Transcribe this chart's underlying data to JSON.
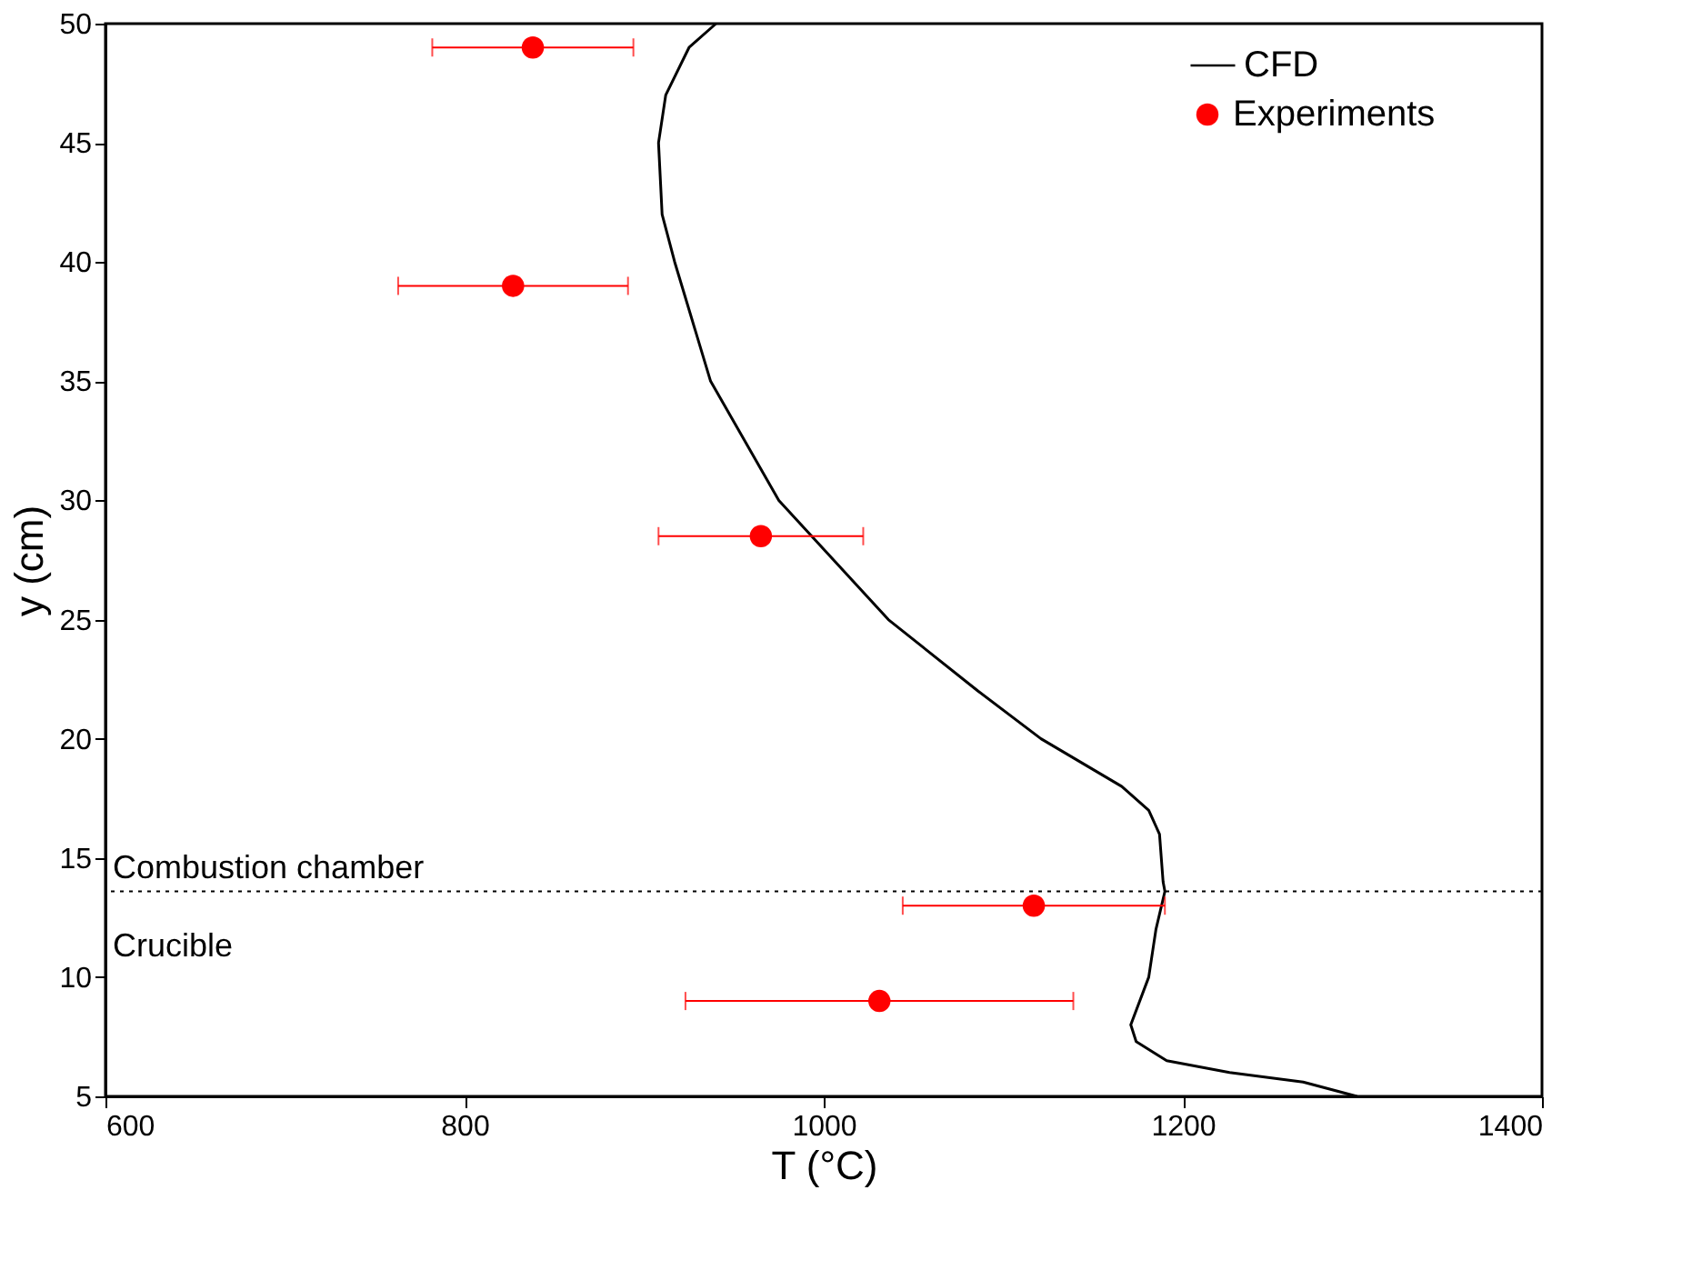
{
  "chart_data": {
    "type": "line",
    "xlabel": "T (°C)",
    "ylabel": "y (cm)",
    "xlim": [
      600,
      1400
    ],
    "xticks": [
      600,
      800,
      1000,
      1200,
      1400
    ],
    "ylim": [
      5,
      50
    ],
    "yticks": [
      5,
      10,
      15,
      20,
      25,
      30,
      35,
      40,
      45,
      50
    ],
    "grid": false,
    "legend": "top right",
    "series": [
      {
        "name": "CFD",
        "type": "line",
        "color": "#000000",
        "marker": "none",
        "line_style": "solid",
        "x": [
          940,
          925,
          912,
          908,
          910,
          917,
          937,
          975,
          1036,
          1086,
          1121,
          1166,
          1181,
          1187,
          1189,
          1190,
          1185,
          1181,
          1171,
          1174,
          1191,
          1226,
          1267,
          1297
        ],
        "values": [
          50,
          49,
          47,
          45,
          42,
          40,
          35,
          30,
          25,
          22,
          20,
          18,
          17,
          16,
          14,
          13.6,
          12,
          10,
          8,
          7.3,
          6.5,
          6,
          5.6,
          5
        ]
      },
      {
        "name": "Experiments",
        "type": "scatter",
        "color": "#ff0000",
        "marker": "circle",
        "x": [
          838,
          827,
          965,
          1117,
          1031
        ],
        "values": [
          49,
          39,
          28.5,
          13,
          9
        ],
        "xerrors": [
          56,
          64,
          57,
          73,
          108
        ]
      }
    ],
    "ref_lines": [
      {
        "axis": "y",
        "value": 13.6,
        "label": "Combustion chamber",
        "color": "#000000",
        "line_style": "dotted"
      }
    ],
    "annotations": [
      "Crucible"
    ]
  }
}
